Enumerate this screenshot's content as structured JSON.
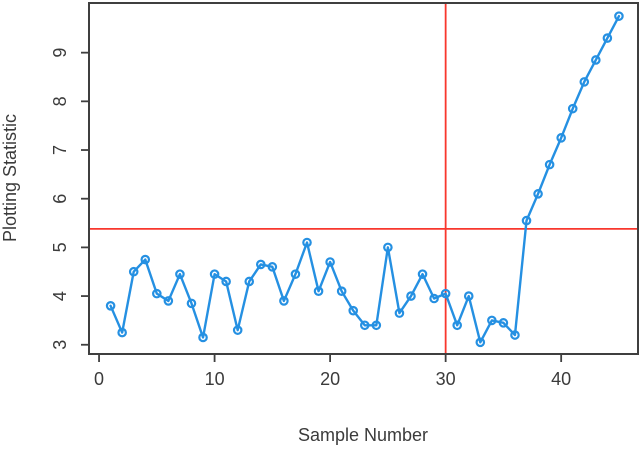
{
  "chart_data": {
    "type": "line",
    "title": "",
    "xlabel": "Sample Number",
    "ylabel": "Plotting Statistic",
    "series": [
      {
        "name": "plotting-statistic",
        "marker": "open-circle",
        "x": [
          1,
          2,
          3,
          4,
          5,
          6,
          7,
          8,
          9,
          10,
          11,
          12,
          13,
          14,
          15,
          16,
          17,
          18,
          19,
          20,
          21,
          22,
          23,
          24,
          25,
          26,
          27,
          28,
          29,
          30,
          31,
          32,
          33,
          34,
          35,
          36,
          37,
          38,
          39,
          40,
          41,
          42,
          43,
          44,
          45
        ],
        "values": [
          3.8,
          3.25,
          4.5,
          4.75,
          4.05,
          3.9,
          4.45,
          3.85,
          3.15,
          4.45,
          4.3,
          3.3,
          4.3,
          4.65,
          4.6,
          3.9,
          4.45,
          5.1,
          4.1,
          4.7,
          4.1,
          3.7,
          3.4,
          3.4,
          5.0,
          3.65,
          4.0,
          4.45,
          3.95,
          4.05,
          3.4,
          4.0,
          3.05,
          3.5,
          3.45,
          3.2,
          5.55,
          6.1,
          6.7,
          7.25,
          7.85,
          8.4,
          8.85,
          9.3,
          9.75
        ]
      }
    ],
    "x_ticks": [
      0,
      10,
      20,
      30,
      40
    ],
    "y_ticks": [
      3,
      4,
      5,
      6,
      7,
      8,
      9
    ],
    "xlim": [
      -0.87,
      46.65
    ],
    "ylim": [
      2.81,
      10.02
    ],
    "grid": false,
    "legend_position": "none",
    "reference_lines": {
      "horizontal_y": 5.38,
      "vertical_x": 30
    },
    "colors": {
      "series": "#2590e2",
      "reference": "#f8372d",
      "axis": "#3f3f3f",
      "text": "#3b3b3b",
      "background": "#ffffff"
    }
  }
}
